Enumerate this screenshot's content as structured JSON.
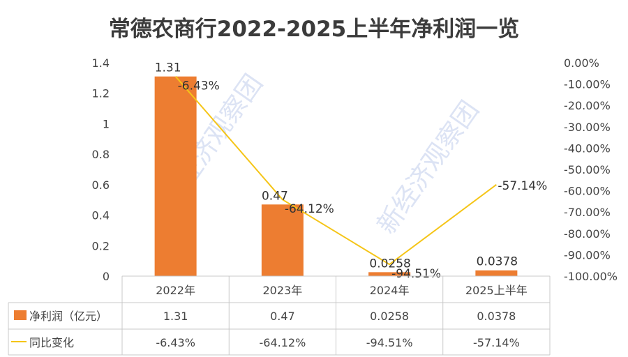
{
  "chart_data": {
    "type": "bar",
    "title": "常德农商行2022-2025上半年净利润一览",
    "categories": [
      "2022年",
      "2023年",
      "2024年",
      "2025上半年"
    ],
    "series": [
      {
        "name": "净利润（亿元）",
        "type": "bar",
        "axis": "left",
        "color": "#ED7D31",
        "values": [
          1.31,
          0.47,
          0.0258,
          0.0378
        ],
        "labels": [
          "1.31",
          "0.47",
          "0.0258",
          "0.0378"
        ]
      },
      {
        "name": "同比变化",
        "type": "line",
        "axis": "right",
        "color": "#F5C518",
        "values": [
          -6.43,
          -64.12,
          -94.51,
          -57.14
        ],
        "labels": [
          "-6.43%",
          "-64.12%",
          "-94.51%",
          "-57.14%"
        ]
      }
    ],
    "y_left": {
      "range": [
        0,
        1.4
      ],
      "ticks": [
        0,
        0.2,
        0.4,
        0.6,
        0.8,
        1,
        1.2,
        1.4
      ],
      "tick_labels": [
        "0",
        "0.2",
        "0.4",
        "0.6",
        "0.8",
        "1",
        "1.2",
        "1.4"
      ]
    },
    "y_right": {
      "range": [
        -100,
        0
      ],
      "ticks": [
        0,
        -10,
        -20,
        -30,
        -40,
        -50,
        -60,
        -70,
        -80,
        -90,
        -100
      ],
      "tick_labels": [
        "0.00%",
        "-10.00%",
        "-20.00%",
        "-30.00%",
        "-40.00%",
        "-50.00%",
        "-60.00%",
        "-70.00%",
        "-80.00%",
        "-90.00%",
        "-100.00%"
      ]
    },
    "grid": false,
    "legend": "data-table-below",
    "data_table": {
      "rows": [
        {
          "legend_label": "净利润（亿元）",
          "cells": [
            "1.31",
            "0.47",
            "0.0258",
            "0.0378"
          ]
        },
        {
          "legend_label": "同比变化",
          "cells": [
            "-6.43%",
            "-64.12%",
            "-94.51%",
            "-57.14%"
          ]
        }
      ]
    },
    "watermark": "新经济观察团"
  }
}
